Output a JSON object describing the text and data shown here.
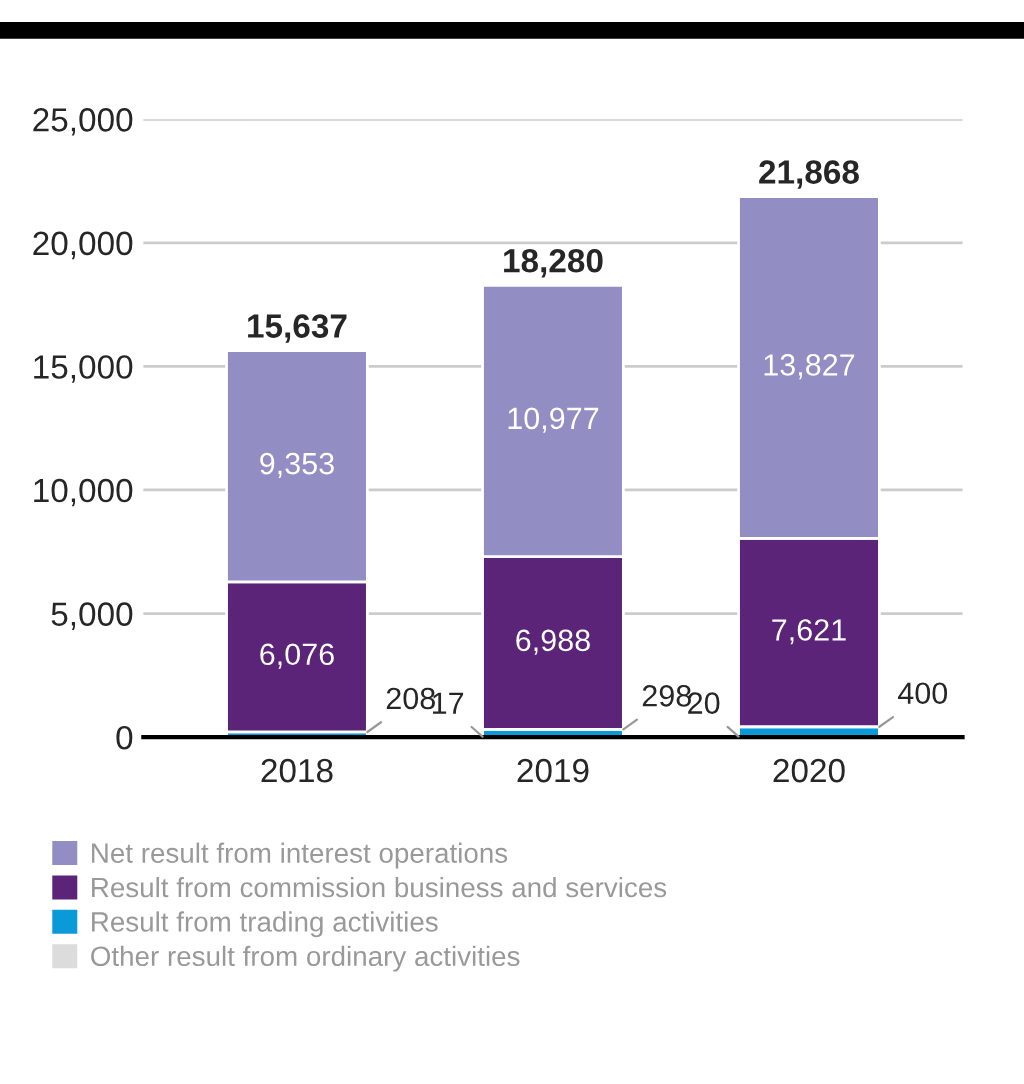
{
  "chart_data": {
    "type": "bar",
    "stacked": true,
    "categories": [
      "2018",
      "2019",
      "2020"
    ],
    "series": [
      {
        "name": "Other result from ordinary activities",
        "color": "#dcdcdc",
        "values": [
          0,
          17,
          20
        ],
        "value_labels": [
          null,
          "17",
          "20"
        ]
      },
      {
        "name": "Result from trading activities",
        "color": "#0a9ad7",
        "values": [
          208,
          298,
          400
        ],
        "value_labels": [
          "208",
          "298",
          "400"
        ]
      },
      {
        "name": "Result from commission business and services",
        "color": "#5b2479",
        "values": [
          6076,
          6988,
          7621
        ],
        "value_labels": [
          "6,076",
          "6,988",
          "7,621"
        ]
      },
      {
        "name": "Net result from interest operations",
        "color": "#928dc3",
        "values": [
          9353,
          10977,
          13827
        ],
        "value_labels": [
          "9,353",
          "10,977",
          "13,827"
        ]
      }
    ],
    "totals": [
      "15,637",
      "18,280",
      "21,868"
    ],
    "ylim": [
      0,
      25000
    ],
    "yticks": [
      0,
      {
        "value": 5000,
        "label": "5,000"
      },
      {
        "value": 10000,
        "label": "10,000"
      },
      {
        "value": 15000,
        "label": "15,000"
      },
      {
        "value": 20000,
        "label": "20,000"
      },
      {
        "value": 25000,
        "label": "25,000"
      }
    ],
    "grid": "y",
    "legend": "bottom"
  }
}
